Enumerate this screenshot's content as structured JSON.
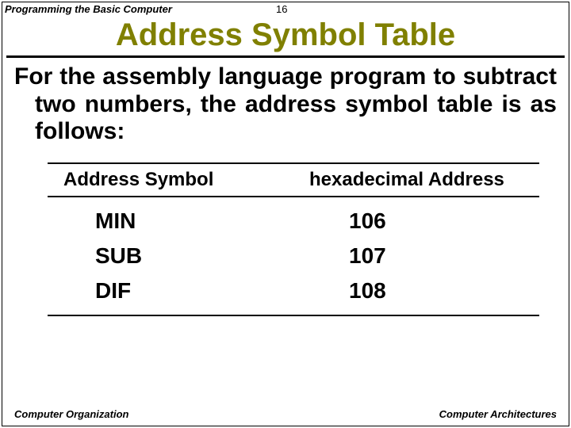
{
  "header": {
    "left": "Programming the Basic Computer",
    "page": "16"
  },
  "title": "Address Symbol Table",
  "description": "For the assembly language program to subtract two numbers, the address symbol table is as follows:",
  "table": {
    "columns": [
      "Address Symbol",
      "hexadecimal Address"
    ],
    "rows": [
      [
        "MIN",
        "106"
      ],
      [
        "SUB",
        "107"
      ],
      [
        "DIF",
        "108"
      ]
    ]
  },
  "footer": {
    "left": "Computer Organization",
    "right": "Computer Architectures"
  },
  "colors": {
    "title": "#808000",
    "text": "#000000",
    "background": "#ffffff"
  }
}
